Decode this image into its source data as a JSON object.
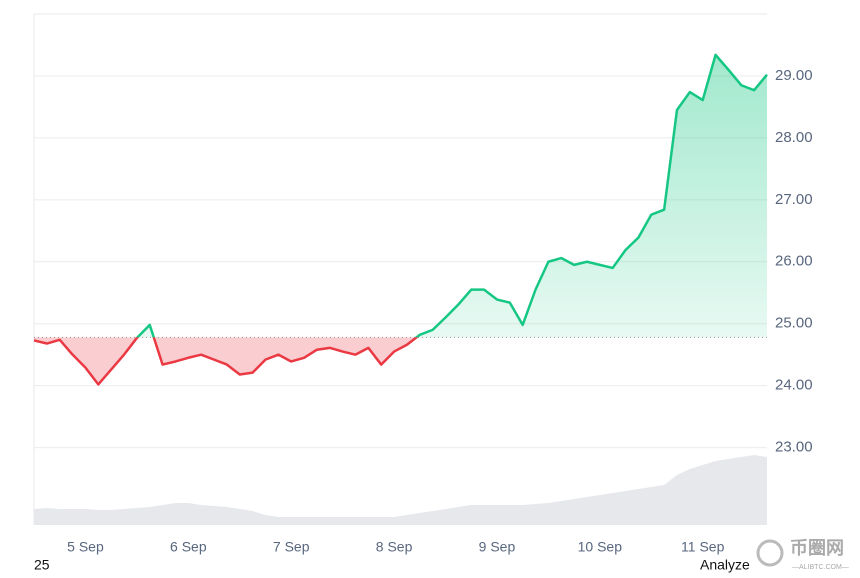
{
  "chart_data": {
    "type": "line",
    "categories": [
      null,
      null,
      null,
      null,
      "5 Sep",
      null,
      null,
      null,
      null,
      null,
      null,
      null,
      "6 Sep",
      null,
      null,
      null,
      null,
      null,
      null,
      null,
      "7 Sep",
      null,
      null,
      null,
      null,
      null,
      null,
      null,
      "8 Sep",
      null,
      null,
      null,
      null,
      null,
      null,
      null,
      "9 Sep",
      null,
      null,
      null,
      null,
      null,
      null,
      null,
      "10 Sep",
      null,
      null,
      null,
      null,
      null,
      null,
      null,
      "11 Sep",
      null,
      null,
      null,
      null,
      null
    ],
    "values": [
      24.73,
      24.68,
      24.74,
      24.5,
      24.29,
      24.02,
      24.26,
      24.5,
      24.77,
      24.98,
      24.34,
      24.39,
      24.45,
      24.5,
      24.42,
      24.34,
      24.18,
      24.21,
      24.42,
      24.5,
      24.39,
      24.45,
      24.58,
      24.61,
      24.55,
      24.5,
      24.61,
      24.34,
      24.55,
      24.66,
      24.82,
      24.9,
      25.1,
      25.31,
      25.55,
      25.55,
      25.39,
      25.34,
      24.98,
      25.55,
      26.0,
      26.06,
      25.95,
      26.0,
      25.95,
      25.9,
      26.19,
      26.39,
      26.76,
      26.84,
      28.45,
      28.74,
      28.61,
      29.34,
      29.1,
      28.85,
      28.77,
      29.02
    ],
    "volume": [
      16,
      17,
      16,
      16,
      16,
      15,
      15,
      16,
      17,
      18,
      20,
      22,
      22,
      20,
      19,
      18,
      16,
      14,
      10,
      8,
      8,
      8,
      8,
      8,
      8,
      8,
      8,
      8,
      8,
      10,
      12,
      14,
      16,
      18,
      20,
      20,
      20,
      20,
      20,
      21,
      22,
      24,
      26,
      28,
      30,
      32,
      34,
      36,
      38,
      40,
      50,
      56,
      60,
      64,
      66,
      68,
      70,
      68
    ],
    "volume_lim": [
      0,
      100
    ],
    "baseline": 24.78,
    "up_color": "#16c784",
    "down_color": "#ea3943",
    "volume_color": "#e6e8ec",
    "ylim": [
      21.75,
      30
    ],
    "yticks": [
      {
        "value": 23,
        "label": "23.00"
      },
      {
        "value": 24,
        "label": "24.00"
      },
      {
        "value": 25,
        "label": "25.00"
      },
      {
        "value": 26,
        "label": "26.00"
      },
      {
        "value": 27,
        "label": "27.00"
      },
      {
        "value": 28,
        "label": "28.00"
      },
      {
        "value": 29,
        "label": "29.00"
      }
    ],
    "grid": true,
    "footer_left": "25",
    "footer_right": "Analyze",
    "watermark": "币圈网",
    "watermark_sub": "—ALIBTC.COM—"
  }
}
